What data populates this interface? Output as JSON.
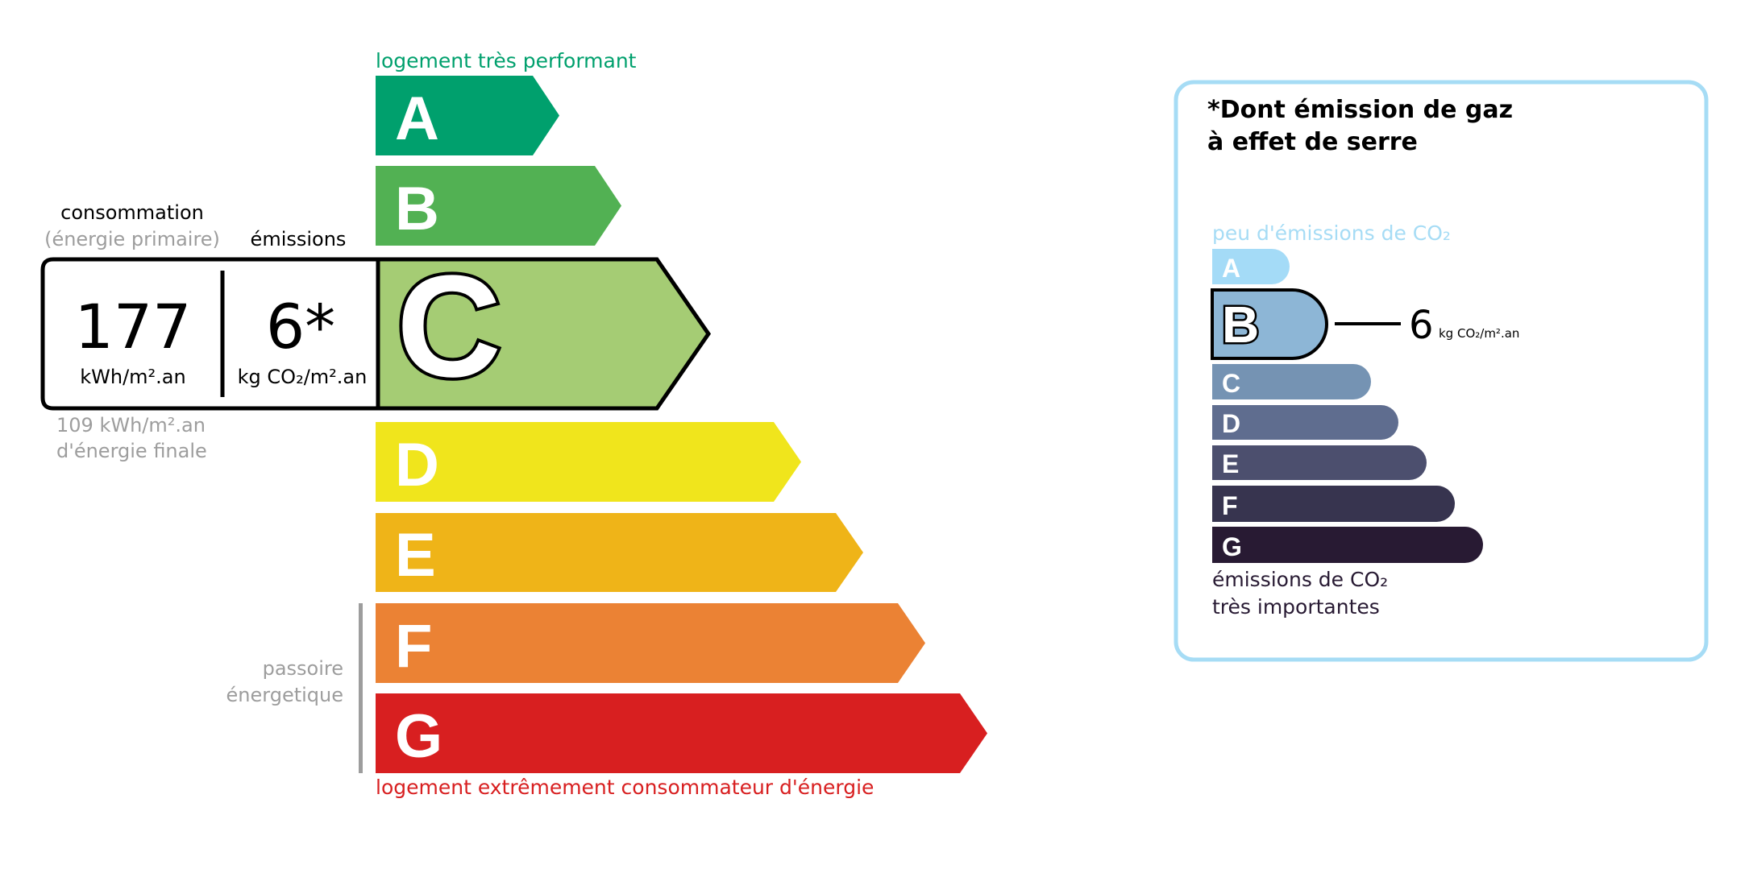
{
  "energy": {
    "top_label": "logement très performant",
    "bottom_label": "logement extrêmement consommateur d'énergie",
    "top_color": "#00a06d",
    "bottom_color": "#d81f20",
    "classes": [
      {
        "letter": "A",
        "color": "#00a06d"
      },
      {
        "letter": "B",
        "color": "#52b153"
      },
      {
        "letter": "C",
        "color": "#a5cc74"
      },
      {
        "letter": "D",
        "color": "#f0e51c"
      },
      {
        "letter": "E",
        "color": "#efb418"
      },
      {
        "letter": "F",
        "color": "#eb8234"
      },
      {
        "letter": "G",
        "color": "#d81f20"
      }
    ],
    "current_class": "C",
    "consumption_header": "consommation",
    "consumption_subheader": "(énergie primaire)",
    "emissions_header": "émissions",
    "consumption_value": "177",
    "consumption_unit": "kWh/m².an",
    "emissions_value": "6*",
    "emissions_unit": "kg CO₂/m².an",
    "final_energy_value": "109 kWh/m².an",
    "final_energy_label": "d'énergie finale",
    "passoire_line1": "passoire",
    "passoire_line2": "énergetique"
  },
  "ghg": {
    "title_line1": "*Dont émission de gaz",
    "title_line2": "à effet de serre",
    "top_label": "peu d'émissions de CO₂",
    "bottom_label_line1": "émissions de CO₂",
    "bottom_label_line2": "très importantes",
    "border_color": "#a6dcf5",
    "classes": [
      {
        "letter": "A",
        "color": "#a4dbf7"
      },
      {
        "letter": "B",
        "color": "#8db6d6"
      },
      {
        "letter": "C",
        "color": "#7593b3"
      },
      {
        "letter": "D",
        "color": "#5f6d8f"
      },
      {
        "letter": "E",
        "color": "#4c4f6e"
      },
      {
        "letter": "F",
        "color": "#37344f"
      },
      {
        "letter": "G",
        "color": "#281a33"
      }
    ],
    "current_class": "B",
    "value": "6",
    "unit": "kg CO₂/m².an"
  }
}
